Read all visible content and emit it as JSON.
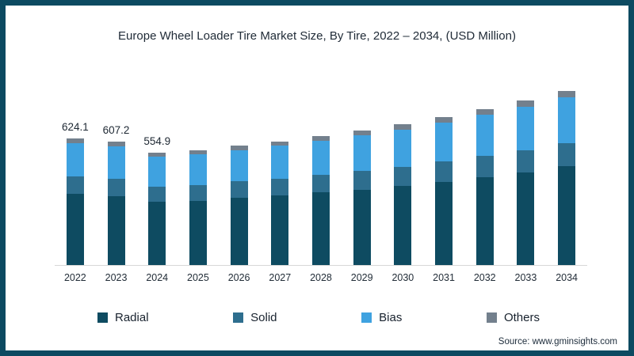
{
  "page": {
    "title": "Europe Wheel Loader Tire Market Size, By Tire, 2022 – 2034, (USD Million)",
    "source": "Source: www.gminsights.com"
  },
  "colors": {
    "radial": "#0e4b61",
    "solid": "#2e6e8e",
    "bias": "#3fa2e0",
    "others": "#73808d",
    "frame_border": "#0c4a61",
    "axis_line": "#d8d8d8",
    "text": "#212c38"
  },
  "chart_data": {
    "type": "bar",
    "stacked": true,
    "title": "Europe Wheel Loader Tire Market Size, By Tire, 2022 – 2034, (USD Million)",
    "unit": "USD Million",
    "xlabel": "",
    "ylabel": "",
    "ylim": [
      0,
      900
    ],
    "grid": false,
    "y_axis_visible": false,
    "legend_position": "bottom",
    "categories": [
      "2022",
      "2023",
      "2024",
      "2025",
      "2026",
      "2027",
      "2028",
      "2029",
      "2030",
      "2031",
      "2032",
      "2033",
      "2034"
    ],
    "series": [
      {
        "name": "Radial",
        "color_key": "radial",
        "values": [
          351.0,
          341.3,
          311.9,
          318.0,
          331.0,
          342.8,
          357.3,
          372.6,
          390.1,
          409.9,
          431.8,
          455.9,
          487.0
        ]
      },
      {
        "name": "Solid",
        "color_key": "solid",
        "values": [
          85.5,
          83.2,
          76.0,
          77.5,
          80.7,
          83.6,
          87.1,
          90.8,
          95.1,
          99.9,
          105.3,
          111.1,
          115.0
        ]
      },
      {
        "name": "Bias",
        "color_key": "bias",
        "values": [
          164.3,
          160.3,
          146.5,
          149.4,
          155.5,
          161.0,
          167.8,
          175.1,
          183.3,
          192.5,
          202.8,
          214.2,
          224.0
        ]
      },
      {
        "name": "Others",
        "color_key": "others",
        "values": [
          23.3,
          22.4,
          20.5,
          20.9,
          21.8,
          22.6,
          23.5,
          24.5,
          25.7,
          27.0,
          28.4,
          30.0,
          32.0
        ]
      }
    ],
    "totals": [
      624.1,
      607.2,
      554.9,
      565.8,
      589.0,
      610.0,
      635.7,
      663.0,
      694.2,
      729.3,
      768.3,
      811.2,
      858.0
    ],
    "data_labels": [
      "624.1",
      "607.2",
      "554.9",
      null,
      null,
      null,
      null,
      null,
      null,
      null,
      null,
      null,
      null
    ]
  }
}
